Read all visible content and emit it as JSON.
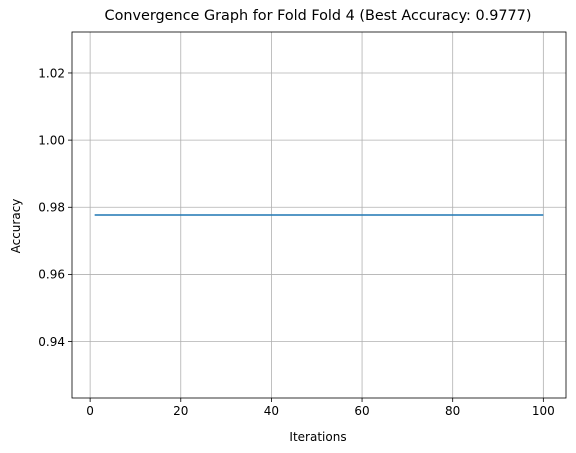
{
  "chart_data": {
    "type": "line",
    "title": "Convergence Graph for Fold Fold 4 (Best Accuracy: 0.9777)",
    "xlabel": "Iterations",
    "ylabel": "Accuracy",
    "xlim": [
      -4,
      105
    ],
    "ylim": [
      0.9232,
      1.0322
    ],
    "x_ticks": [
      0,
      20,
      40,
      60,
      80,
      100
    ],
    "y_ticks": [
      0.94,
      0.96,
      0.98,
      1.0,
      1.02
    ],
    "x_tick_labels": [
      "0",
      "20",
      "40",
      "60",
      "80",
      "100"
    ],
    "y_tick_labels": [
      "0.94",
      "0.96",
      "0.98",
      "1.00",
      "1.02"
    ],
    "grid": true,
    "series": [
      {
        "color": "#1f77b4",
        "x": [
          1,
          100
        ],
        "y": [
          0.9777,
          0.9777
        ]
      }
    ]
  }
}
